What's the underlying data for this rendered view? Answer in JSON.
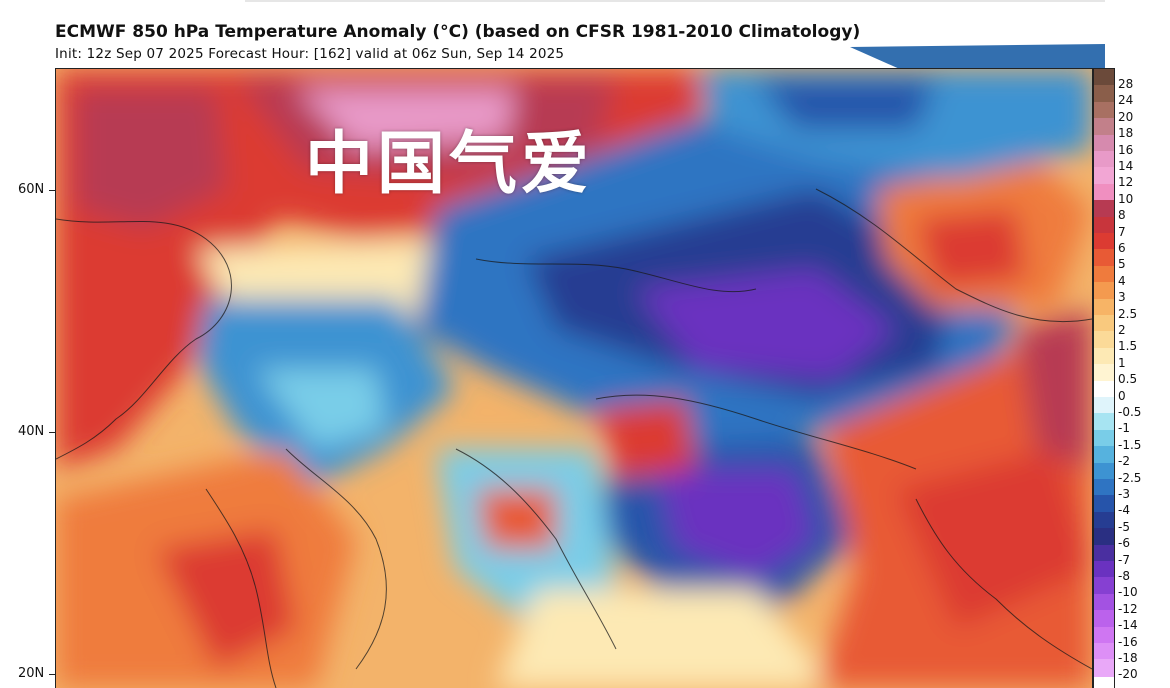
{
  "header": {
    "title": "ECMWF 850 hPa Temperature Anomaly (°C) (based on CFSR 1981-2010 Climatology)",
    "subtitle": "Init: 12z Sep 07 2025   Forecast Hour: [162]   valid at 06z Sun, Sep 14 2025"
  },
  "watermark": {
    "text": "中国气爱"
  },
  "latitude_labels": [
    {
      "label": "60N",
      "value": 60
    },
    {
      "label": "40N",
      "value": 40
    },
    {
      "label": "20N",
      "value": 20
    }
  ],
  "colorbar": {
    "ticks": [
      "28",
      "24",
      "20",
      "18",
      "16",
      "14",
      "12",
      "10",
      "8",
      "7",
      "6",
      "5",
      "4",
      "3",
      "2.5",
      "2",
      "1.5",
      "1",
      "0.5",
      "0",
      "-0.5",
      "-1",
      "-1.5",
      "-2",
      "-2.5",
      "-3",
      "-4",
      "-5",
      "-6",
      "-7",
      "-8",
      "-10",
      "-12",
      "-14",
      "-16",
      "-18",
      "-20"
    ],
    "colors": [
      "#6b4a3a",
      "#8a5e4a",
      "#a87062",
      "#c2808a",
      "#d68aae",
      "#e89ac8",
      "#f2a6d4",
      "#f08fc0",
      "#b73a52",
      "#c8353c",
      "#dc3b32",
      "#e85a35",
      "#ef7b3d",
      "#f49a4f",
      "#f7b466",
      "#f9c97e",
      "#fbda98",
      "#fde9b4",
      "#fff4d2",
      "#ffffff",
      "#dff4fb",
      "#a7e4f2",
      "#79cde8",
      "#56b2de",
      "#3d93d2",
      "#2f74c2",
      "#2654aa",
      "#263d92",
      "#2a2f82",
      "#4a2fa0",
      "#6a32c0",
      "#8640d2",
      "#a352e2",
      "#bb62ec",
      "#cf76f2",
      "#dd8ff6",
      "#e9a8f8"
    ]
  },
  "map": {
    "field": "850 hPa temperature anomaly",
    "units": "°C"
  }
}
